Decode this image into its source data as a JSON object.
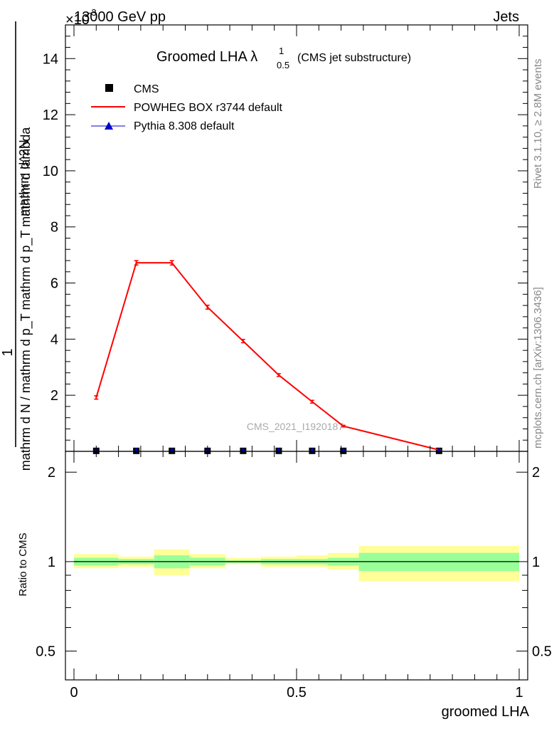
{
  "header": {
    "energy": "13000 GeV pp",
    "exponent_marker": "×10",
    "exponent_power": "-3",
    "process": "Jets"
  },
  "plot_title": {
    "main": "Groomed LHA λ",
    "superscript": "1",
    "subscript": "0.5",
    "note": "(CMS jet substructure)"
  },
  "side_labels": {
    "rivet": "Rivet 3.1.10, ≥ 2.8M events",
    "mcplots": "mcplots.cern.ch [arXiv:1306.3436]"
  },
  "watermark": "CMS_2021_I1920187",
  "legend": {
    "placement": "top-left",
    "entries": [
      {
        "label": "CMS",
        "marker": "square",
        "color": "#000000"
      },
      {
        "label": "POWHEG BOX r3744 default",
        "marker": "line",
        "color": "#ff0000"
      },
      {
        "label": "Pythia 8.308 default",
        "marker": "triangle",
        "color": "#0000cc"
      }
    ]
  },
  "chart_data": [
    {
      "type": "line",
      "panel": "main",
      "ylabel_numerator": "1",
      "ylabel_denominator": "mathrm d N / mathrm d p_T mathrm d p_T mathrm d lambda",
      "ylabel_top": "mathrm d^2N",
      "xlim": [
        0,
        1
      ],
      "ylim": [
        0,
        15.2
      ],
      "y_scale_factor": "1e-3",
      "yticks": [
        2,
        4,
        6,
        8,
        10,
        12,
        14
      ],
      "ytick_labels": [
        "2",
        "4",
        "6",
        "8",
        "10",
        "12",
        "14"
      ],
      "grid": false,
      "series": [
        {
          "name": "CMS",
          "marker": "square",
          "color": "#000000",
          "x": [
            0.05,
            0.14,
            0.22,
            0.3,
            0.38,
            0.46,
            0.535,
            0.605,
            0.82
          ],
          "y": [
            0.005,
            0.005,
            0.005,
            0.005,
            0.005,
            0.005,
            0.005,
            0.005,
            0.005
          ]
        },
        {
          "name": "POWHEG BOX r3744 default",
          "marker": "line",
          "color": "#ff0000",
          "x": [
            0.05,
            0.14,
            0.22,
            0.3,
            0.38,
            0.46,
            0.535,
            0.605,
            0.82
          ],
          "y": [
            1.92,
            6.72,
            6.72,
            5.14,
            3.93,
            2.72,
            1.77,
            0.9,
            0.05
          ],
          "yerr": [
            0.06,
            0.08,
            0.08,
            0.07,
            0.06,
            0.05,
            0.05,
            0.03,
            0.01
          ]
        },
        {
          "name": "Pythia 8.308 default",
          "marker": "triangle",
          "color": "#0000cc",
          "x": [
            0.05,
            0.14,
            0.22,
            0.3,
            0.38,
            0.46,
            0.535,
            0.605,
            0.82
          ],
          "y": [
            0.005,
            0.005,
            0.005,
            0.005,
            0.005,
            0.005,
            0.005,
            0.005,
            0.005
          ]
        }
      ]
    },
    {
      "type": "area",
      "panel": "ratio",
      "ylabel": "Ratio to CMS",
      "xlabel": "groomed LHA",
      "xlim": [
        0,
        1
      ],
      "ylim": [
        0.4,
        2.35
      ],
      "yscale": "log",
      "yticks": [
        0.5,
        1,
        2
      ],
      "ytick_labels": [
        "0.5",
        "1",
        "2"
      ],
      "xticks": [
        0,
        0.5,
        1
      ],
      "xtick_labels": [
        "0",
        "0.5",
        "1"
      ],
      "reference_line": 1,
      "bins": [
        {
          "x0": 0.0,
          "x1": 0.1,
          "stat_lo": 0.97,
          "stat_hi": 1.03,
          "tot_lo": 0.95,
          "tot_hi": 1.06
        },
        {
          "x0": 0.1,
          "x1": 0.18,
          "stat_lo": 0.98,
          "stat_hi": 1.02,
          "tot_lo": 0.96,
          "tot_hi": 1.04
        },
        {
          "x0": 0.18,
          "x1": 0.26,
          "stat_lo": 0.95,
          "stat_hi": 1.05,
          "tot_lo": 0.9,
          "tot_hi": 1.1
        },
        {
          "x0": 0.26,
          "x1": 0.34,
          "stat_lo": 0.97,
          "stat_hi": 1.03,
          "tot_lo": 0.95,
          "tot_hi": 1.06
        },
        {
          "x0": 0.34,
          "x1": 0.42,
          "stat_lo": 0.99,
          "stat_hi": 1.01,
          "tot_lo": 0.98,
          "tot_hi": 1.03
        },
        {
          "x0": 0.42,
          "x1": 0.5,
          "stat_lo": 0.98,
          "stat_hi": 1.02,
          "tot_lo": 0.96,
          "tot_hi": 1.04
        },
        {
          "x0": 0.5,
          "x1": 0.57,
          "stat_lo": 0.98,
          "stat_hi": 1.02,
          "tot_lo": 0.96,
          "tot_hi": 1.05
        },
        {
          "x0": 0.57,
          "x1": 0.64,
          "stat_lo": 0.97,
          "stat_hi": 1.03,
          "tot_lo": 0.94,
          "tot_hi": 1.07
        },
        {
          "x0": 0.64,
          "x1": 1.0,
          "stat_lo": 0.93,
          "stat_hi": 1.07,
          "tot_lo": 0.86,
          "tot_hi": 1.13
        }
      ],
      "colors": {
        "stat": "#99ff99",
        "total": "#ffff99",
        "line": "#000000"
      }
    }
  ]
}
